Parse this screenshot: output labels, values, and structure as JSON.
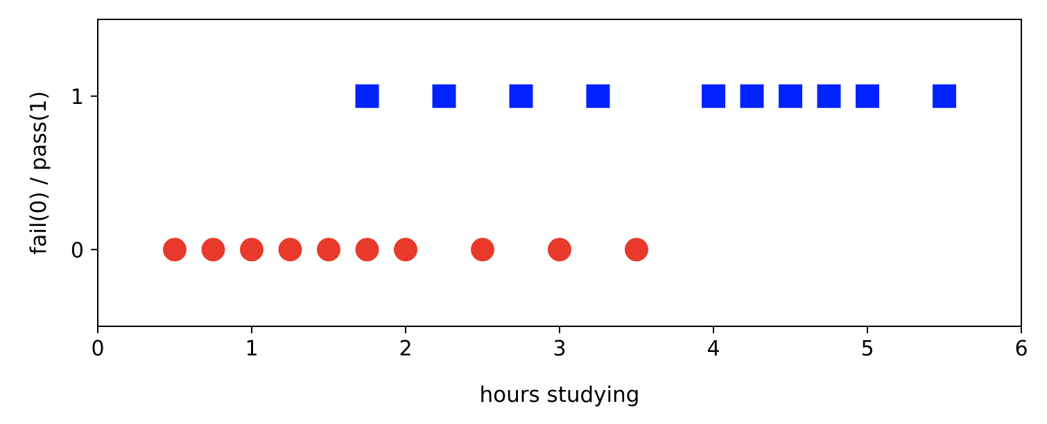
{
  "chart_data": {
    "type": "scatter",
    "title": "",
    "xlabel": "hours studying",
    "ylabel": "fail(0) / pass(1)",
    "xlim": [
      0,
      6
    ],
    "ylim": [
      -0.5,
      1.5
    ],
    "xticks": [
      0,
      1,
      2,
      3,
      4,
      5,
      6
    ],
    "yticks": [
      0,
      1
    ],
    "grid": false,
    "series": [
      {
        "marker": "circle",
        "color": "#e8392a",
        "x": [
          0.5,
          0.75,
          1.0,
          1.25,
          1.5,
          1.75,
          2.0,
          2.5,
          3.0,
          3.5
        ],
        "y": [
          0,
          0,
          0,
          0,
          0,
          0,
          0,
          0,
          0,
          0
        ]
      },
      {
        "marker": "square",
        "color": "#0022ff",
        "x": [
          1.75,
          2.25,
          2.75,
          3.25,
          4.0,
          4.25,
          4.5,
          4.75,
          5.0,
          5.5
        ],
        "y": [
          1,
          1,
          1,
          1,
          1,
          1,
          1,
          1,
          1,
          1
        ]
      }
    ]
  }
}
